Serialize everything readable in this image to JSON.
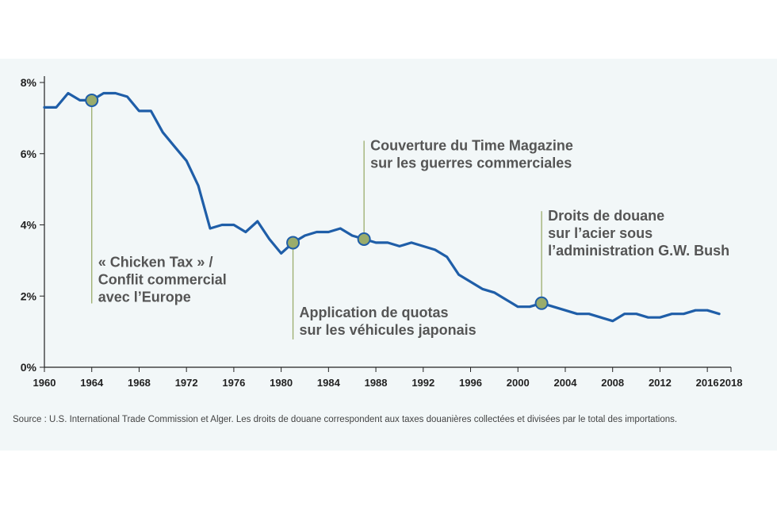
{
  "chart_data": {
    "type": "line",
    "x": [
      1960,
      1961,
      1962,
      1963,
      1964,
      1965,
      1966,
      1967,
      1968,
      1969,
      1970,
      1971,
      1972,
      1973,
      1974,
      1975,
      1976,
      1977,
      1978,
      1979,
      1980,
      1981,
      1982,
      1983,
      1984,
      1985,
      1986,
      1987,
      1988,
      1989,
      1990,
      1991,
      1992,
      1993,
      1994,
      1995,
      1996,
      1997,
      1998,
      1999,
      2000,
      2001,
      2002,
      2003,
      2004,
      2005,
      2006,
      2007,
      2008,
      2009,
      2010,
      2011,
      2012,
      2013,
      2014,
      2015,
      2016,
      2017
    ],
    "values": [
      7.3,
      7.3,
      7.7,
      7.5,
      7.5,
      7.7,
      7.7,
      7.6,
      7.2,
      7.2,
      6.6,
      6.2,
      5.8,
      5.1,
      3.9,
      4.0,
      4.0,
      3.8,
      4.1,
      3.6,
      3.2,
      3.5,
      3.7,
      3.8,
      3.8,
      3.9,
      3.7,
      3.6,
      3.5,
      3.5,
      3.4,
      3.5,
      3.4,
      3.3,
      3.1,
      2.6,
      2.4,
      2.2,
      2.1,
      1.9,
      1.7,
      1.7,
      1.8,
      1.7,
      1.6,
      1.5,
      1.5,
      1.4,
      1.3,
      1.5,
      1.5,
      1.4,
      1.4,
      1.5,
      1.5,
      1.6,
      1.6,
      1.5
    ],
    "xlim": [
      1960,
      2018
    ],
    "ylim": [
      0,
      8
    ],
    "x_ticks": [
      "1960",
      "1964",
      "1968",
      "1972",
      "1976",
      "1980",
      "1984",
      "1988",
      "1992",
      "1996",
      "2000",
      "2004",
      "2008",
      "2012",
      "2016",
      "2018"
    ],
    "x_tick_values": [
      1960,
      1964,
      1968,
      1972,
      1976,
      1980,
      1984,
      1988,
      1992,
      1996,
      2000,
      2004,
      2008,
      2012,
      2016,
      2018
    ],
    "y_ticks": [
      "0%",
      "2%",
      "4%",
      "6%",
      "8%"
    ],
    "y_tick_values": [
      0,
      2,
      4,
      6,
      8
    ],
    "grid": false,
    "line_color": "#1f5ea8",
    "marker_color": "#9aac6b",
    "annotations": [
      {
        "x": 1964,
        "y": 7.5,
        "lines": [
          "« Chicken Tax » /",
          "Conflit commercial",
          "avec l’Europe"
        ],
        "side": "below"
      },
      {
        "x": 1981,
        "y": 3.5,
        "lines": [
          "Application de quotas",
          "sur les véhicules japonais"
        ],
        "side": "below"
      },
      {
        "x": 1987,
        "y": 3.6,
        "lines": [
          "Couverture du Time Magazine",
          "sur les guerres commerciales"
        ],
        "side": "above"
      },
      {
        "x": 2002,
        "y": 1.8,
        "lines": [
          "Droits de douane",
          "sur l’acier sous",
          "l’administration G.W. Bush"
        ],
        "side": "above"
      }
    ],
    "source": "Source : U.S. International Trade Commission et Alger. Les droits de douane correspondent aux taxes douanières collectées et divisées par le total des importations."
  }
}
